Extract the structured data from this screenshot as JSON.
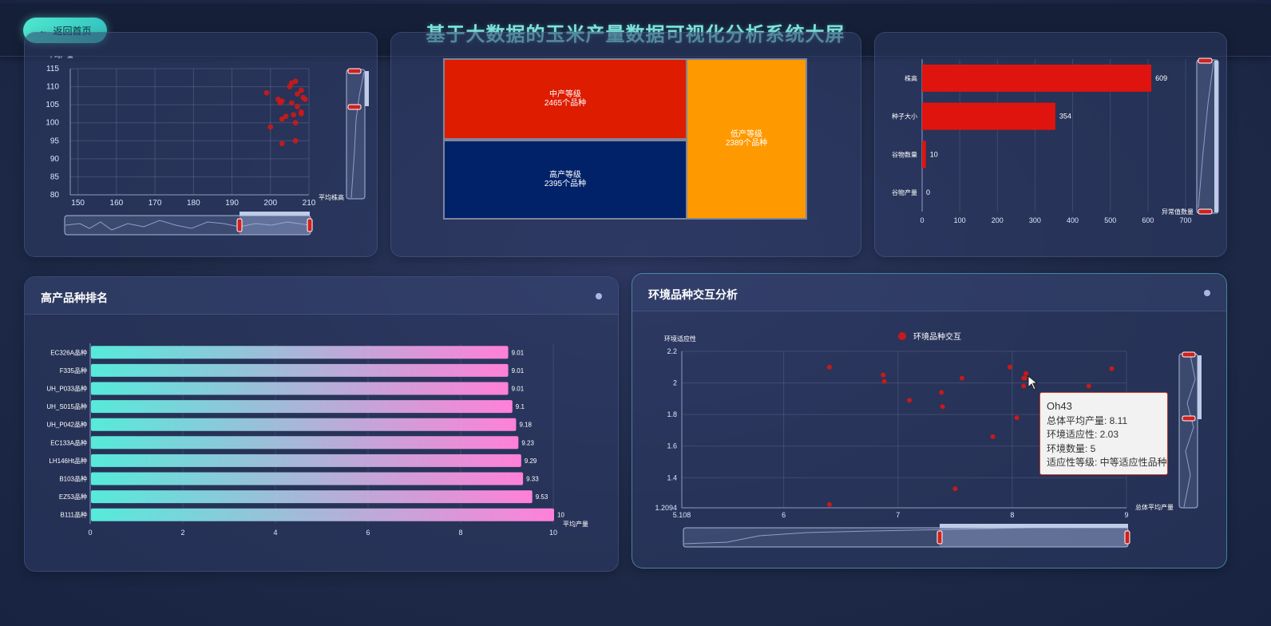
{
  "header": {
    "back_label": "返回首页",
    "title": "基于大数据的玉米产量数据可视化分析系统大屏"
  },
  "scatter1": {
    "ylabel_partial": "平均产量",
    "xlabel": "平均株高",
    "x_ticks": [
      "150",
      "160",
      "170",
      "180",
      "190",
      "200",
      "210"
    ],
    "y_ticks": [
      "80",
      "85",
      "90",
      "95",
      "100",
      "105",
      "110",
      "115"
    ]
  },
  "treemap": {
    "cells": [
      {
        "name": "中产等级",
        "count": "2465个品种",
        "color": "#dd1c00"
      },
      {
        "name": "高产等级",
        "count": "2395个品种",
        "color": "#012269"
      },
      {
        "name": "低产等级",
        "count": "2389个品种",
        "color": "#ff9900"
      }
    ]
  },
  "anomaly": {
    "xlabel": "异常值数量",
    "x_ticks": [
      "0",
      "100",
      "200",
      "300",
      "400",
      "500",
      "600",
      "700"
    ]
  },
  "ranking": {
    "title": "高产品种排名",
    "xlabel": "平均产量",
    "x_ticks": [
      "0",
      "2",
      "4",
      "6",
      "8",
      "10"
    ]
  },
  "interaction": {
    "title": "环境品种交互分析",
    "ylabel": "环境适应性",
    "xlabel": "总体平均产量",
    "legend": "环境品种交互",
    "x_ticks": [
      "5.108",
      "6",
      "7",
      "8",
      "9"
    ],
    "y_ticks": [
      "1.2094",
      "1.4",
      "1.6",
      "1.8",
      "2",
      "2.2"
    ],
    "tooltip": {
      "title": "Oh43",
      "line1": "总体平均产量: 8.11",
      "line2": "环境适应性: 2.03",
      "line3": "环境数量: 5",
      "line4": "适应性等级: 中等适应性品种"
    }
  },
  "chart_data": [
    {
      "type": "scatter",
      "xlabel": "平均株高",
      "ylabel": "平均产量",
      "xlim": [
        148,
        210
      ],
      "ylim": [
        80,
        115
      ],
      "grid": true,
      "points": [
        [
          199,
          108.3
        ],
        [
          202,
          106.5
        ],
        [
          203,
          106
        ],
        [
          202.5,
          105.5
        ],
        [
          205,
          110
        ],
        [
          205.5,
          111
        ],
        [
          206.5,
          111.5
        ],
        [
          207,
          108
        ],
        [
          208,
          109
        ],
        [
          208.5,
          107
        ],
        [
          205.5,
          105.5
        ],
        [
          207,
          104.5
        ],
        [
          209,
          106.5
        ],
        [
          208,
          103
        ],
        [
          206,
          102.2
        ],
        [
          208,
          102.5
        ],
        [
          203,
          101
        ],
        [
          204,
          101.8
        ],
        [
          206.5,
          100
        ],
        [
          200,
          98.8
        ],
        [
          206.5,
          95
        ],
        [
          203,
          94.2
        ]
      ],
      "color": "#cc1a1a"
    },
    {
      "type": "treemap",
      "categories": [
        "中产等级",
        "高产等级",
        "低产等级"
      ],
      "values": [
        2465,
        2395,
        2389
      ]
    },
    {
      "type": "bar",
      "orientation": "horizontal",
      "categories": [
        "株高",
        "种子大小",
        "谷物数量",
        "谷物产量"
      ],
      "values": [
        609,
        354,
        10,
        0
      ],
      "xlabel": "异常值数量",
      "xlim": [
        0,
        700
      ],
      "color": "#e0140e"
    },
    {
      "type": "bar",
      "orientation": "horizontal",
      "title": "高产品种排名",
      "categories": [
        "EC326A品种",
        "F335品种",
        "UH_P033品种",
        "UH_S015品种",
        "UH_P042品种",
        "EC133A品种",
        "LH146Ht品种",
        "B103品种",
        "EZ53品种",
        "B111品种"
      ],
      "values": [
        9.01,
        9.01,
        9.01,
        9.1,
        9.18,
        9.23,
        9.29,
        9.33,
        9.53,
        10
      ],
      "xlabel": "平均产量",
      "xlim": [
        0,
        10
      ],
      "gradient": [
        "#56eada",
        "#ff80d8"
      ]
    },
    {
      "type": "scatter",
      "title": "环境品种交互分析",
      "series": [
        {
          "name": "环境品种交互",
          "color": "#c71a1a",
          "points": [
            [
              6.4,
              2.1
            ],
            [
              6.87,
              2.05
            ],
            [
              6.88,
              2.01
            ],
            [
              7.1,
              1.89
            ],
            [
              7.38,
              1.94
            ],
            [
              7.39,
              1.85
            ],
            [
              7.5,
              1.33
            ],
            [
              7.56,
              2.03
            ],
            [
              7.83,
              1.66
            ],
            [
              7.98,
              2.1
            ],
            [
              8.04,
              1.78
            ],
            [
              8.1,
              1.98
            ],
            [
              8.1,
              2.03
            ],
            [
              8.12,
              2.06
            ],
            [
              8.11,
              2.03
            ],
            [
              8.67,
              1.98
            ],
            [
              8.87,
              2.09
            ],
            [
              6.4,
              1.23
            ]
          ]
        }
      ],
      "xlabel": "总体平均产量",
      "ylabel": "环境适应性",
      "xlim": [
        5.108,
        9
      ],
      "ylim": [
        1.2094,
        2.2
      ],
      "grid": true
    }
  ]
}
